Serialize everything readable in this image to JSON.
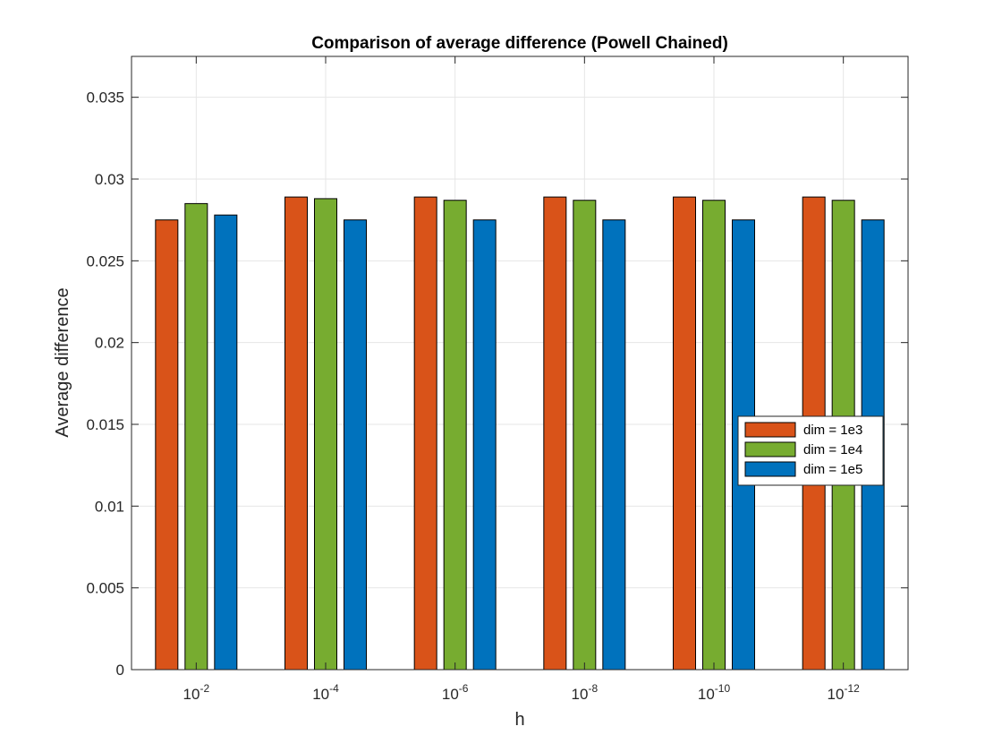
{
  "chart_data": {
    "type": "bar",
    "title": "Comparison of average difference (Powell Chained)",
    "xlabel": "h",
    "ylabel": "Average difference",
    "categories": [
      {
        "base": "10",
        "exp": "-2"
      },
      {
        "base": "10",
        "exp": "-4"
      },
      {
        "base": "10",
        "exp": "-6"
      },
      {
        "base": "10",
        "exp": "-8"
      },
      {
        "base": "10",
        "exp": "-10"
      },
      {
        "base": "10",
        "exp": "-12"
      }
    ],
    "series": [
      {
        "name": "dim = 1e3",
        "color": "#D95319",
        "values": [
          0.0275,
          0.0289,
          0.0289,
          0.0289,
          0.0289,
          0.0289
        ]
      },
      {
        "name": "dim = 1e4",
        "color": "#77AC30",
        "values": [
          0.0285,
          0.0288,
          0.0287,
          0.0287,
          0.0287,
          0.0287
        ]
      },
      {
        "name": "dim = 1e5",
        "color": "#0072BD",
        "values": [
          0.0278,
          0.0275,
          0.0275,
          0.0275,
          0.0275,
          0.0275
        ]
      }
    ],
    "ylim": [
      0,
      0.0375
    ],
    "yticks": [
      0,
      0.005,
      0.01,
      0.015,
      0.02,
      0.025,
      0.03,
      0.035
    ],
    "ytick_labels": [
      "0",
      "0.005",
      "0.01",
      "0.015",
      "0.02",
      "0.025",
      "0.03",
      "0.035"
    ],
    "grid": true,
    "legend_position": "right"
  }
}
